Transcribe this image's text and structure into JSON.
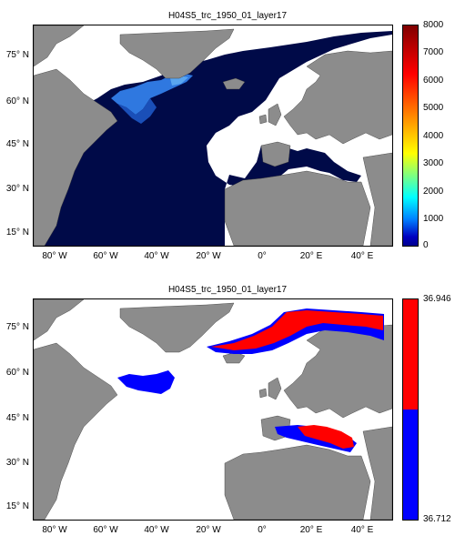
{
  "panels": [
    {
      "title": "H04S5_trc_1950_01_layer17",
      "lat_labels": [
        "75° N",
        "60° N",
        "45° N",
        "30° N",
        "15° N"
      ],
      "lon_labels": [
        "80° W",
        "60° W",
        "40° W",
        "20° W",
        "0°",
        "20° E",
        "40° E"
      ],
      "colorbar": {
        "ticks": [
          "8000",
          "7000",
          "6000",
          "5000",
          "4000",
          "3000",
          "2000",
          "1000",
          "0"
        ],
        "range": [
          0,
          8000
        ],
        "colormap": "jet-like"
      }
    },
    {
      "title": "H04S5_trc_1950_01_layer17",
      "lat_labels": [
        "75° N",
        "60° N",
        "45° N",
        "30° N",
        "15° N"
      ],
      "lon_labels": [
        "80° W",
        "60° W",
        "40° W",
        "20° W",
        "0°",
        "20° E",
        "40° E"
      ],
      "colorbar": {
        "ticks": [
          "36.946",
          "36.712"
        ],
        "range": [
          36.712,
          36.946
        ],
        "colors": [
          "#ff0000",
          "#0000ff"
        ]
      }
    }
  ],
  "colors": {
    "land": "#8c8c8c",
    "ocean_fill_top": "#000a48",
    "ocean_high_top": "#2f78e0",
    "high_value": "#ff0000",
    "low_value": "#0000ff"
  }
}
